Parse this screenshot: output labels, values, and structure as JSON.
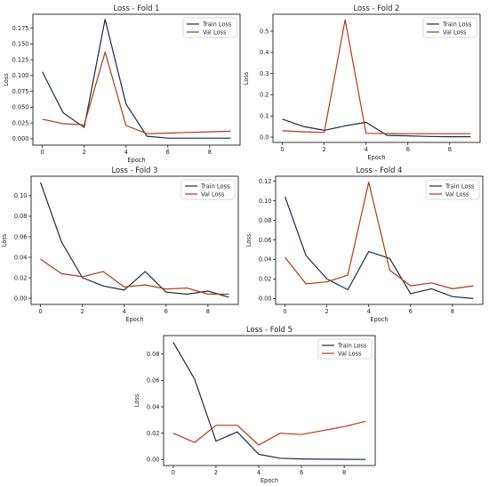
{
  "colors": {
    "train": "#1b2a49",
    "val": "#b03a10"
  },
  "chart_data": [
    {
      "type": "line",
      "title": "Loss - Fold 1",
      "xlabel": "Epoch",
      "ylabel": "Loss",
      "xlim": [
        -0.45,
        9.45
      ],
      "ylim": [
        -0.01,
        0.197
      ],
      "xticks": [
        0,
        2,
        4,
        6,
        8
      ],
      "yticks": [
        0.0,
        0.025,
        0.05,
        0.075,
        0.1,
        0.125,
        0.15,
        0.175
      ],
      "ytick_labels": [
        "0.000",
        "0.025",
        "0.050",
        "0.075",
        "0.100",
        "0.125",
        "0.150",
        "0.175"
      ],
      "xtick_labels": [
        "0",
        "2",
        "4",
        "6",
        "8"
      ],
      "legend": "top-right",
      "x": [
        0,
        1,
        2,
        3,
        4,
        5,
        6,
        7,
        8,
        9
      ],
      "series": [
        {
          "name": "Train Loss",
          "values": [
            0.106,
            0.041,
            0.018,
            0.189,
            0.055,
            0.004,
            0.001,
            0.001,
            0.001,
            0.001
          ]
        },
        {
          "name": "Val Loss",
          "values": [
            0.031,
            0.024,
            0.022,
            0.137,
            0.021,
            0.008,
            0.009,
            0.01,
            0.011,
            0.012
          ]
        }
      ]
    },
    {
      "type": "line",
      "title": "Loss - Fold 2",
      "xlabel": "Epoch",
      "ylabel": "Loss",
      "xlim": [
        -0.45,
        9.45
      ],
      "ylim": [
        -0.025,
        0.58
      ],
      "xticks": [
        0,
        2,
        4,
        6,
        8
      ],
      "yticks": [
        0.0,
        0.1,
        0.2,
        0.3,
        0.4,
        0.5
      ],
      "ytick_labels": [
        "0.0",
        "0.1",
        "0.2",
        "0.3",
        "0.4",
        "0.5"
      ],
      "xtick_labels": [
        "0",
        "2",
        "4",
        "6",
        "8"
      ],
      "legend": "top-right",
      "x": [
        0,
        1,
        2,
        3,
        4,
        5,
        6,
        7,
        8,
        9
      ],
      "series": [
        {
          "name": "Train Loss",
          "values": [
            0.085,
            0.05,
            0.032,
            0.053,
            0.07,
            0.008,
            0.006,
            0.003,
            0.002,
            0.002
          ]
        },
        {
          "name": "Val Loss",
          "values": [
            0.03,
            0.025,
            0.022,
            0.554,
            0.018,
            0.017,
            0.016,
            0.016,
            0.016,
            0.016
          ]
        }
      ]
    },
    {
      "type": "line",
      "title": "Loss - Fold 3",
      "xlabel": "Epoch",
      "ylabel": "Loss",
      "xlim": [
        -0.45,
        9.45
      ],
      "ylim": [
        -0.006,
        0.119
      ],
      "xticks": [
        0,
        2,
        4,
        6,
        8
      ],
      "yticks": [
        0.0,
        0.02,
        0.04,
        0.06,
        0.08,
        0.1
      ],
      "ytick_labels": [
        "0.00",
        "0.02",
        "0.04",
        "0.06",
        "0.08",
        "0.10"
      ],
      "xtick_labels": [
        "0",
        "2",
        "4",
        "6",
        "8"
      ],
      "legend": "top-right",
      "x": [
        0,
        1,
        2,
        3,
        4,
        5,
        6,
        7,
        8,
        9
      ],
      "series": [
        {
          "name": "Train Loss",
          "values": [
            0.113,
            0.055,
            0.02,
            0.012,
            0.008,
            0.026,
            0.006,
            0.004,
            0.007,
            0.001
          ]
        },
        {
          "name": "Val Loss",
          "values": [
            0.038,
            0.024,
            0.021,
            0.026,
            0.011,
            0.013,
            0.009,
            0.01,
            0.004,
            0.004
          ]
        }
      ]
    },
    {
      "type": "line",
      "title": "Loss - Fold 4",
      "xlabel": "Epoch",
      "ylabel": "Loss",
      "xlim": [
        -0.45,
        9.45
      ],
      "ylim": [
        -0.006,
        0.125
      ],
      "xticks": [
        0,
        2,
        4,
        6,
        8
      ],
      "yticks": [
        0.0,
        0.02,
        0.04,
        0.06,
        0.08,
        0.1,
        0.12
      ],
      "ytick_labels": [
        "0.00",
        "0.02",
        "0.04",
        "0.06",
        "0.08",
        "0.10",
        "0.12"
      ],
      "xtick_labels": [
        "0",
        "2",
        "4",
        "6",
        "8"
      ],
      "legend": "top-right",
      "x": [
        0,
        1,
        2,
        3,
        4,
        5,
        6,
        7,
        8,
        9
      ],
      "series": [
        {
          "name": "Train Loss",
          "values": [
            0.104,
            0.044,
            0.02,
            0.009,
            0.048,
            0.041,
            0.005,
            0.01,
            0.002,
            0.0
          ]
        },
        {
          "name": "Val Loss",
          "values": [
            0.042,
            0.015,
            0.017,
            0.024,
            0.119,
            0.029,
            0.013,
            0.016,
            0.01,
            0.013
          ]
        }
      ]
    },
    {
      "type": "line",
      "title": "Loss - Fold 5",
      "xlabel": "Epoch",
      "ylabel": "Loss",
      "xlim": [
        -0.45,
        9.45
      ],
      "ylim": [
        -0.0045,
        0.094
      ],
      "xticks": [
        0,
        2,
        4,
        6,
        8
      ],
      "yticks": [
        0.0,
        0.02,
        0.04,
        0.06,
        0.08
      ],
      "ytick_labels": [
        "0.00",
        "0.02",
        "0.04",
        "0.06",
        "0.08"
      ],
      "xtick_labels": [
        "0",
        "2",
        "4",
        "6",
        "8"
      ],
      "legend": "top-right",
      "x": [
        0,
        1,
        2,
        3,
        4,
        5,
        6,
        7,
        8,
        9
      ],
      "series": [
        {
          "name": "Train Loss",
          "values": [
            0.089,
            0.061,
            0.014,
            0.021,
            0.004,
            0.001,
            0.0005,
            0.0003,
            0.0002,
            0.0001
          ]
        },
        {
          "name": "Val Loss",
          "values": [
            0.02,
            0.013,
            0.026,
            0.026,
            0.011,
            0.02,
            0.019,
            0.022,
            0.025,
            0.029
          ]
        }
      ]
    }
  ]
}
